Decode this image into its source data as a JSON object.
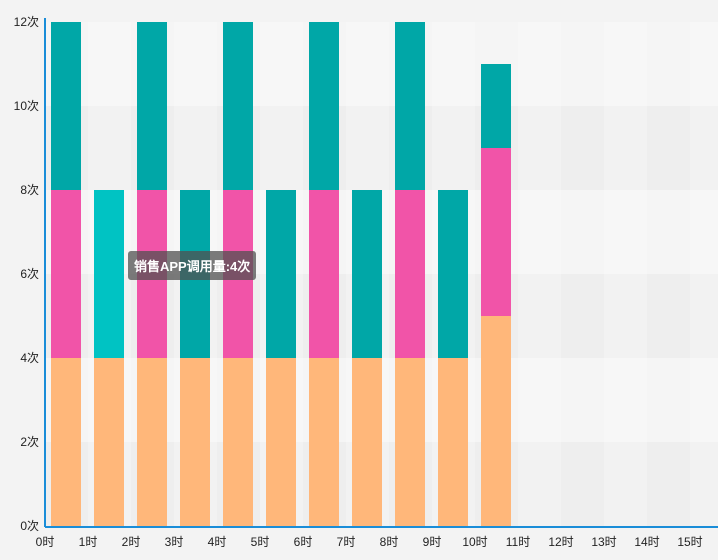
{
  "chart_data": {
    "type": "bar",
    "stacked": true,
    "categories": [
      "0时",
      "1时",
      "2时",
      "3时",
      "4时",
      "5时",
      "6时",
      "7时",
      "8时",
      "9时",
      "10时",
      "11时",
      "12时",
      "13时",
      "14时",
      "15时"
    ],
    "series": [
      {
        "color": "#ffb77a",
        "values": [
          4,
          4,
          4,
          4,
          4,
          4,
          4,
          4,
          4,
          4,
          5,
          0,
          0,
          0,
          0,
          0
        ]
      },
      {
        "color": "#f154a8",
        "values": [
          4,
          0,
          4,
          0,
          4,
          0,
          4,
          0,
          4,
          0,
          4,
          0,
          0,
          0,
          0,
          0
        ]
      },
      {
        "color": "#00a7a7",
        "values": [
          4,
          0,
          4,
          4,
          4,
          4,
          4,
          4,
          4,
          4,
          2,
          0,
          0,
          0,
          0,
          0
        ]
      },
      {
        "color": "#00c3c3",
        "values": [
          0,
          4,
          0,
          0,
          0,
          0,
          0,
          0,
          0,
          0,
          0,
          0,
          0,
          0,
          0,
          0
        ]
      }
    ],
    "y_ticks": [
      "0次",
      "2次",
      "4次",
      "6次",
      "8次",
      "10次",
      "12次"
    ],
    "ylim": [
      0,
      12
    ],
    "grid": "alternating bands",
    "axis_color": "#1a8dd8"
  },
  "tooltip": {
    "text": "销售APP调用量:4次"
  }
}
